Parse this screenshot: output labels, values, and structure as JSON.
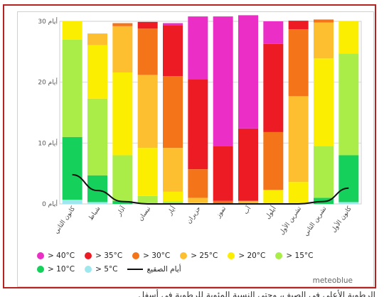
{
  "chart_data": {
    "type": "bar",
    "stacked": true,
    "categories": [
      "كانون الثاني",
      "شباط",
      "آذار",
      "نيسان",
      "أيار",
      "حزيران",
      "تموز",
      "آب",
      "أيلول",
      "تشرين الأول",
      "تشرين الثاني",
      "كانون الأول"
    ],
    "y_ticks": [
      {
        "value": 30,
        "label": "30 أيام"
      },
      {
        "value": 20,
        "label": "20 أيام"
      },
      {
        "value": 10,
        "label": "10 أيام"
      },
      {
        "value": 0,
        "label": "0 أيام"
      }
    ],
    "ylim": [
      0,
      31
    ],
    "grid": true,
    "series": [
      {
        "name": "> 5°C",
        "color": "#9fe7ef",
        "values": [
          0.7,
          0.3,
          0,
          0,
          0,
          0,
          0,
          0,
          0,
          0,
          0,
          0.3
        ]
      },
      {
        "name": "> 10°C",
        "color": "#15d15b",
        "values": [
          10.3,
          4.4,
          0.5,
          0,
          0,
          0,
          0,
          0,
          0,
          0,
          1,
          7.7
        ]
      },
      {
        "name": "> 15°C",
        "color": "#aaed49",
        "values": [
          16,
          12.6,
          7.5,
          1.3,
          0.4,
          0,
          0,
          0,
          0,
          0,
          8.5,
          16.7
        ]
      },
      {
        "name": "> 20°C",
        "color": "#fcee00",
        "values": [
          3,
          8.8,
          13.6,
          7.9,
          1.6,
          0.2,
          0,
          0,
          2.3,
          3.6,
          14.4,
          5.3
        ]
      },
      {
        "name": "> 25°C",
        "color": "#fdbf2f",
        "values": [
          0,
          1.9,
          7.6,
          12,
          7.2,
          0.8,
          0,
          0.5,
          0,
          14.1,
          5.9,
          0
        ]
      },
      {
        "name": "> 30°C",
        "color": "#f4741a",
        "values": [
          0,
          0,
          0.5,
          7.6,
          11.8,
          4.7,
          0.5,
          0,
          9.5,
          11,
          0.5,
          0
        ]
      },
      {
        "name": "> 35°C",
        "color": "#ed1c24",
        "values": [
          0,
          0,
          0,
          1.1,
          8.3,
          14.8,
          9,
          11.9,
          14.5,
          1.4,
          0,
          0
        ]
      },
      {
        "name": "> 40°C",
        "color": "#ea2ec6",
        "values": [
          0,
          0,
          0,
          0,
          0.4,
          10.3,
          21.3,
          18.6,
          3.7,
          0,
          0,
          0
        ]
      }
    ],
    "line_series": {
      "name": "أيام الصقيع",
      "color": "#111111",
      "values": [
        4.8,
        2.2,
        0.4,
        0,
        0,
        0,
        0,
        0,
        0,
        0,
        0.4,
        2.6
      ]
    },
    "legend_order": [
      "> 40°C",
      "> 35°C",
      "> 30°C",
      "> 25°C",
      "> 20°C",
      "> 15°C",
      "> 10°C",
      "> 5°C",
      "أيام الصقيع"
    ],
    "legend_position": "bottom"
  },
  "brand": "meteoblue",
  "footer_text": "الرطوبة الأعلى في الصيف، وحتى النسبة المئوية للرطوبة في أسفل"
}
